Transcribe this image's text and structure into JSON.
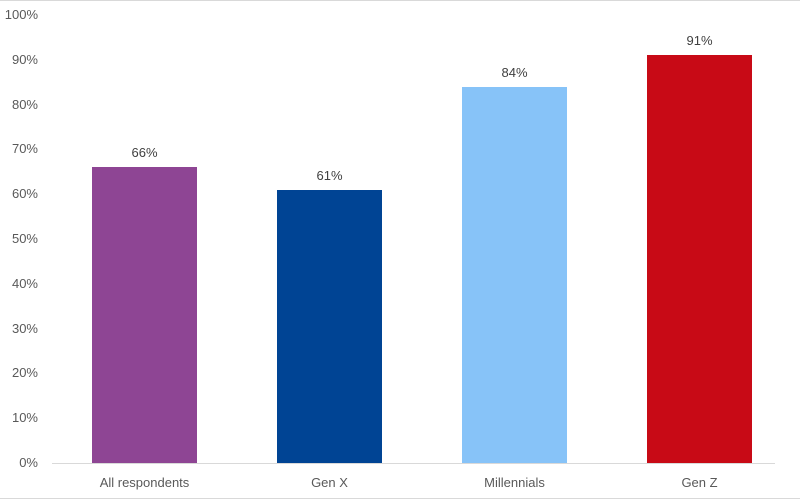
{
  "chart_data": {
    "type": "bar",
    "title": "",
    "xlabel": "",
    "ylabel": "",
    "categories": [
      "All respondents",
      "Gen X",
      "Millennials",
      "Gen Z"
    ],
    "values": [
      66,
      61,
      84,
      91
    ],
    "value_labels": [
      "66%",
      "61%",
      "84%",
      "91%"
    ],
    "colors": [
      "#8e4594",
      "#004494",
      "#87c3f8",
      "#c80a16"
    ],
    "ylim": [
      0,
      100
    ],
    "yticks": [
      "0%",
      "10%",
      "20%",
      "30%",
      "40%",
      "50%",
      "60%",
      "70%",
      "80%",
      "90%",
      "100%"
    ],
    "grid": false,
    "legend": null
  }
}
